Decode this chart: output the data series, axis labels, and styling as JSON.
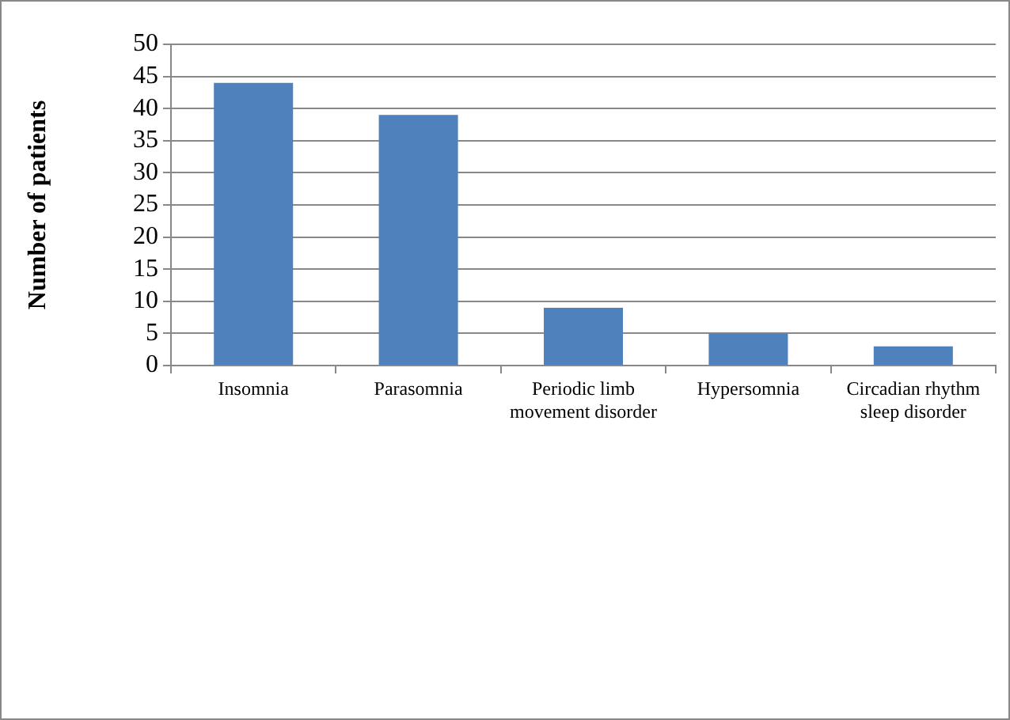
{
  "chart_data": {
    "type": "bar",
    "ylabel": "Number of patients",
    "categories": [
      "Insomnia",
      "Parasomnia",
      "Periodic limb movement disorder",
      "Hypersomnia",
      "Circadian rhythm sleep disorder"
    ],
    "values": [
      44,
      39,
      9,
      5,
      3
    ],
    "color": "#4f81bd",
    "ylim": [
      0,
      50
    ],
    "yticks": [
      0,
      5,
      10,
      15,
      20,
      25,
      30,
      35,
      40,
      45,
      50
    ],
    "grid": "y",
    "legend": false
  }
}
